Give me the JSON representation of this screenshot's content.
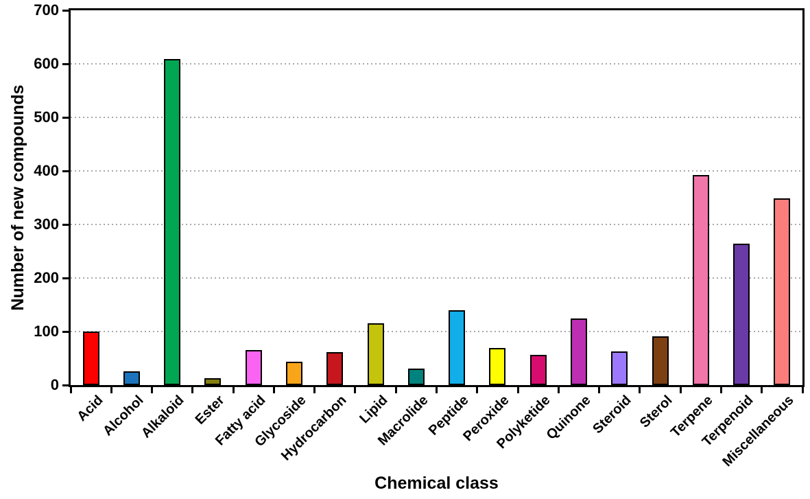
{
  "chart_data": {
    "type": "bar",
    "title": "",
    "xlabel": "Chemical class",
    "ylabel": "Number of new compounds",
    "ylim": [
      0,
      700
    ],
    "yticks": [
      0,
      100,
      200,
      300,
      400,
      500,
      600,
      700
    ],
    "grid": "horizontal-dotted",
    "gridline_values": [
      100,
      200,
      300,
      400,
      500,
      600
    ],
    "legend": "none",
    "categories": [
      "Acid",
      "Alcohol",
      "Alkaloid",
      "Ester",
      "Fatty acid",
      "Glycoside",
      "Hydrocarbon",
      "Lipid",
      "Macrolide",
      "Peptide",
      "Peroxide",
      "Polyketide",
      "Quinone",
      "Steroid",
      "Sterol",
      "Terpene",
      "Terpenoid",
      "Miscellaneous"
    ],
    "values": [
      100,
      25,
      609,
      13,
      66,
      43,
      61,
      116,
      31,
      140,
      69,
      56,
      124,
      63,
      91,
      392,
      264,
      349
    ],
    "bar_colors": [
      "#fe0000",
      "#1c75bc",
      "#00a651",
      "#847e0e",
      "#fb63f3",
      "#f9a51a",
      "#c5171d",
      "#c4c40c",
      "#00837e",
      "#12aee9",
      "#fefe00",
      "#d60d6f",
      "#bc2fb2",
      "#9c79fb",
      "#7d4013",
      "#f176a9",
      "#6a3aa6",
      "#fb7e7d"
    ],
    "bar_border_color": "#000000",
    "gridline_color": "#a8a8a8",
    "axis_color": "#000000"
  }
}
